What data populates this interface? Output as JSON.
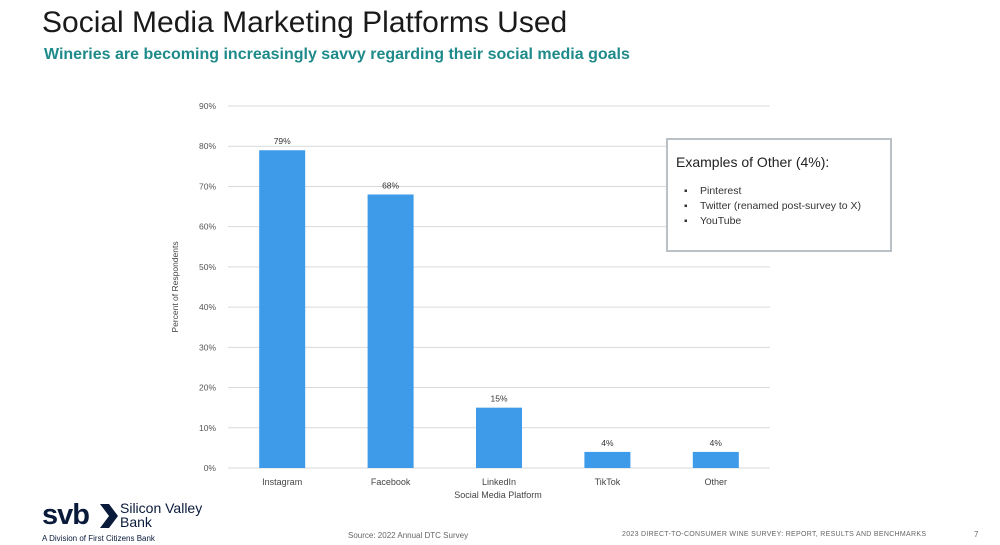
{
  "slide": {
    "title": "Social Media Marketing Platforms Used",
    "subtitle": "Wineries are becoming increasingly savvy regarding their social media goals",
    "source": "Source: 2022 Annual DTC Survey",
    "footer_report": "2023 DIRECT-TO-CONSUMER WINE SURVEY: REPORT, RESULTS AND BENCHMARKS",
    "page_number": "7"
  },
  "callout": {
    "title": "Examples of Other (4%):",
    "bullet_glyph": "▪",
    "items": [
      "Pinterest",
      "Twitter (renamed post-survey to X)",
      "YouTube"
    ]
  },
  "logo": {
    "mark": "svb",
    "name_line1": "Silicon Valley",
    "name_line2": "Bank",
    "division": "A Division of First Citizens Bank",
    "color": "#0a1a3a"
  },
  "colors": {
    "bar": "#3d9be9",
    "subtitle": "#1f8a8a",
    "grid": "#d9d9d9"
  },
  "chart_data": {
    "type": "bar",
    "categories": [
      "Instagram",
      "Facebook",
      "LinkedIn",
      "TikTok",
      "Other"
    ],
    "values": [
      79,
      68,
      15,
      4,
      4
    ],
    "data_labels": [
      "79%",
      "68%",
      "15%",
      "4%",
      "4%"
    ],
    "xlabel": "Social Media Platform",
    "ylabel": "Percent of Respondents",
    "ylim": [
      0,
      90
    ],
    "yticks": [
      0,
      10,
      20,
      30,
      40,
      50,
      60,
      70,
      80,
      90
    ],
    "ytick_labels": [
      "0%",
      "10%",
      "20%",
      "30%",
      "40%",
      "50%",
      "60%",
      "70%",
      "80%",
      "90%"
    ],
    "grid": true,
    "legend": "none"
  }
}
